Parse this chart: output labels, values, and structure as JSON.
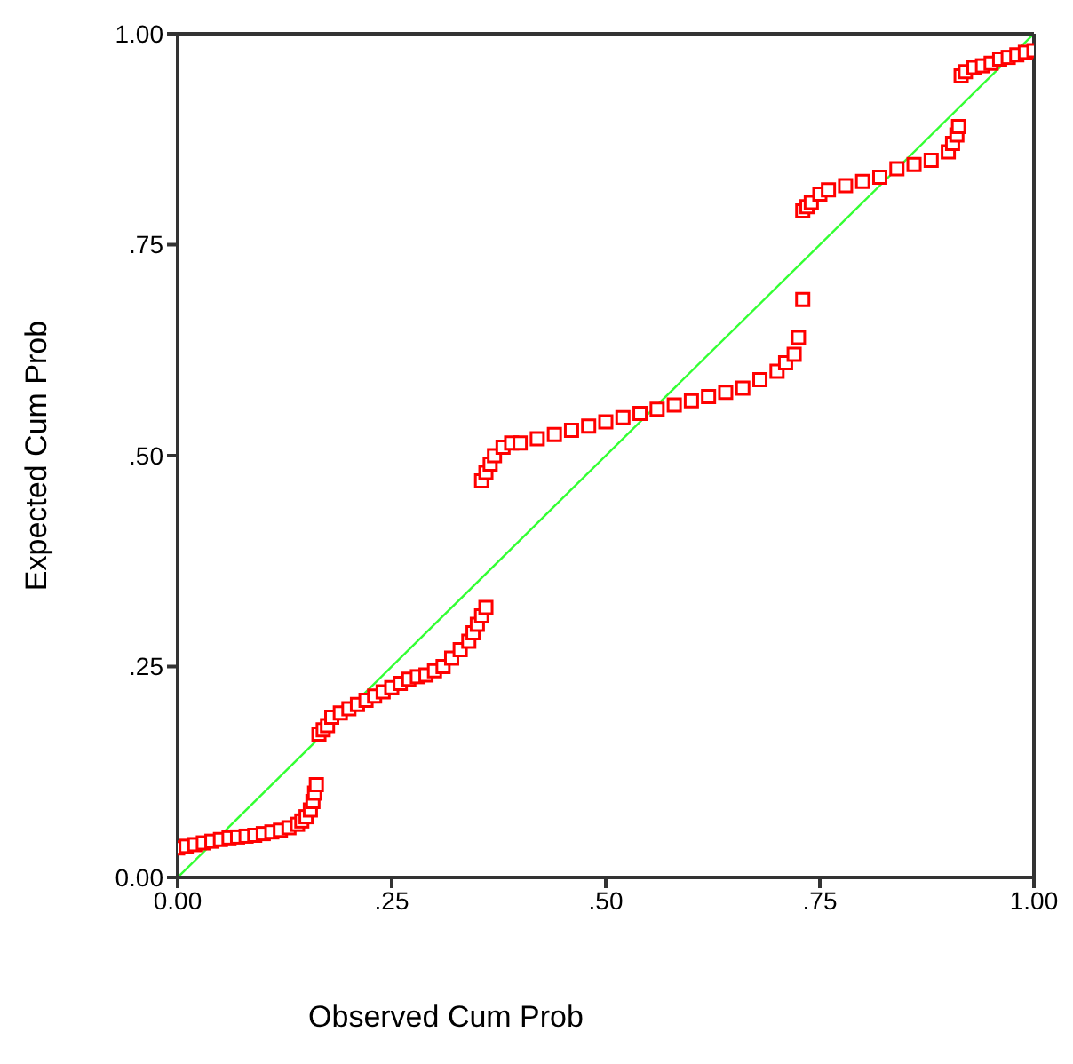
{
  "chart_data": {
    "type": "scatter",
    "xlabel": "Observed Cum Prob",
    "ylabel": "Expected Cum Prob",
    "xlim": [
      0,
      1
    ],
    "ylim": [
      0,
      1
    ],
    "xticks": [
      {
        "value": 0,
        "label": "0.00"
      },
      {
        "value": 0.25,
        "label": ".25"
      },
      {
        "value": 0.5,
        "label": ".50"
      },
      {
        "value": 0.75,
        "label": ".75"
      },
      {
        "value": 1,
        "label": "1.00"
      }
    ],
    "yticks": [
      {
        "value": 0,
        "label": "0.00"
      },
      {
        "value": 0.25,
        "label": ".25"
      },
      {
        "value": 0.5,
        "label": ".50"
      },
      {
        "value": 0.75,
        "label": ".75"
      },
      {
        "value": 1,
        "label": "1.00"
      }
    ],
    "grid": false,
    "legend": false,
    "series": [
      {
        "color": "#ff0000",
        "marker": "square",
        "x": [
          0,
          0.01,
          0.02,
          0.03,
          0.04,
          0.05,
          0.06,
          0.07,
          0.08,
          0.09,
          0.1,
          0.11,
          0.12,
          0.13,
          0.14,
          0.145,
          0.15,
          0.155,
          0.158,
          0.16,
          0.162,
          0.165,
          0.17,
          0.175,
          0.18,
          0.19,
          0.2,
          0.21,
          0.22,
          0.23,
          0.24,
          0.25,
          0.26,
          0.27,
          0.28,
          0.29,
          0.3,
          0.31,
          0.32,
          0.33,
          0.34,
          0.345,
          0.35,
          0.355,
          0.36,
          0.355,
          0.36,
          0.365,
          0.37,
          0.38,
          0.39,
          0.4,
          0.42,
          0.44,
          0.46,
          0.48,
          0.5,
          0.52,
          0.54,
          0.56,
          0.58,
          0.6,
          0.62,
          0.64,
          0.66,
          0.68,
          0.7,
          0.71,
          0.72,
          0.725,
          0.73,
          0.73,
          0.735,
          0.74,
          0.75,
          0.76,
          0.78,
          0.8,
          0.82,
          0.84,
          0.86,
          0.88,
          0.9,
          0.905,
          0.91,
          0.912,
          0.915,
          0.92,
          0.93,
          0.94,
          0.95,
          0.96,
          0.97,
          0.98,
          0.99,
          1
        ],
        "values": [
          0.035,
          0.037,
          0.039,
          0.041,
          0.043,
          0.045,
          0.047,
          0.048,
          0.049,
          0.05,
          0.052,
          0.054,
          0.056,
          0.059,
          0.063,
          0.067,
          0.072,
          0.08,
          0.09,
          0.1,
          0.11,
          0.17,
          0.175,
          0.18,
          0.19,
          0.195,
          0.2,
          0.205,
          0.21,
          0.215,
          0.22,
          0.225,
          0.23,
          0.235,
          0.238,
          0.24,
          0.245,
          0.25,
          0.26,
          0.27,
          0.28,
          0.29,
          0.3,
          0.31,
          0.32,
          0.47,
          0.48,
          0.49,
          0.5,
          0.51,
          0.515,
          0.515,
          0.52,
          0.525,
          0.53,
          0.535,
          0.54,
          0.545,
          0.55,
          0.555,
          0.56,
          0.565,
          0.57,
          0.575,
          0.58,
          0.59,
          0.6,
          0.61,
          0.62,
          0.64,
          0.685,
          0.79,
          0.795,
          0.8,
          0.81,
          0.815,
          0.82,
          0.825,
          0.83,
          0.84,
          0.845,
          0.85,
          0.86,
          0.87,
          0.88,
          0.89,
          0.95,
          0.955,
          0.96,
          0.962,
          0.965,
          0.97,
          0.972,
          0.975,
          0.978,
          0.98
        ]
      },
      {
        "type": "line",
        "color": "#33ff33",
        "x": [
          0,
          1
        ],
        "values": [
          0,
          1
        ]
      }
    ]
  }
}
